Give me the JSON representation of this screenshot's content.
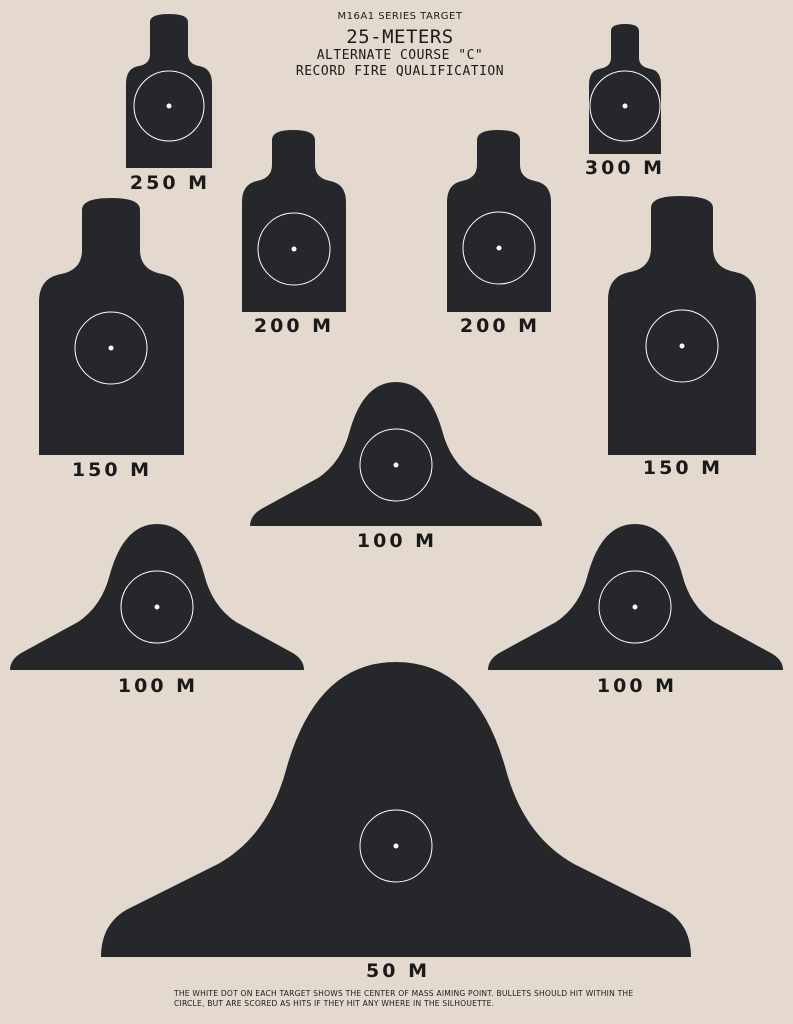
{
  "header": {
    "series": "M16A1 SERIES TARGET",
    "distance": "25-METERS",
    "course": "ALTERNATE COURSE \"C\"",
    "qualification": "RECORD FIRE QUALIFICATION"
  },
  "targets": [
    {
      "label": "250 M"
    },
    {
      "label": "300 M"
    },
    {
      "label": "200 M"
    },
    {
      "label": "200 M"
    },
    {
      "label": "150 M"
    },
    {
      "label": "150 M"
    },
    {
      "label": "100 M"
    },
    {
      "label": "100 M"
    },
    {
      "label": "100 M"
    },
    {
      "label": "50 M"
    }
  ],
  "footnote": "THE WHITE DOT ON EACH TARGET SHOWS THE CENTER OF MASS AIMING POINT. BULLETS SHOULD HIT WITHIN THE CIRCLE, BUT ARE SCORED AS HITS IF THEY HIT ANY WHERE IN THE SILHOUETTE.",
  "colors": {
    "paper": "#e3d9cf",
    "silhouette": "#25272a",
    "aiming_mark": "#ffffff"
  }
}
